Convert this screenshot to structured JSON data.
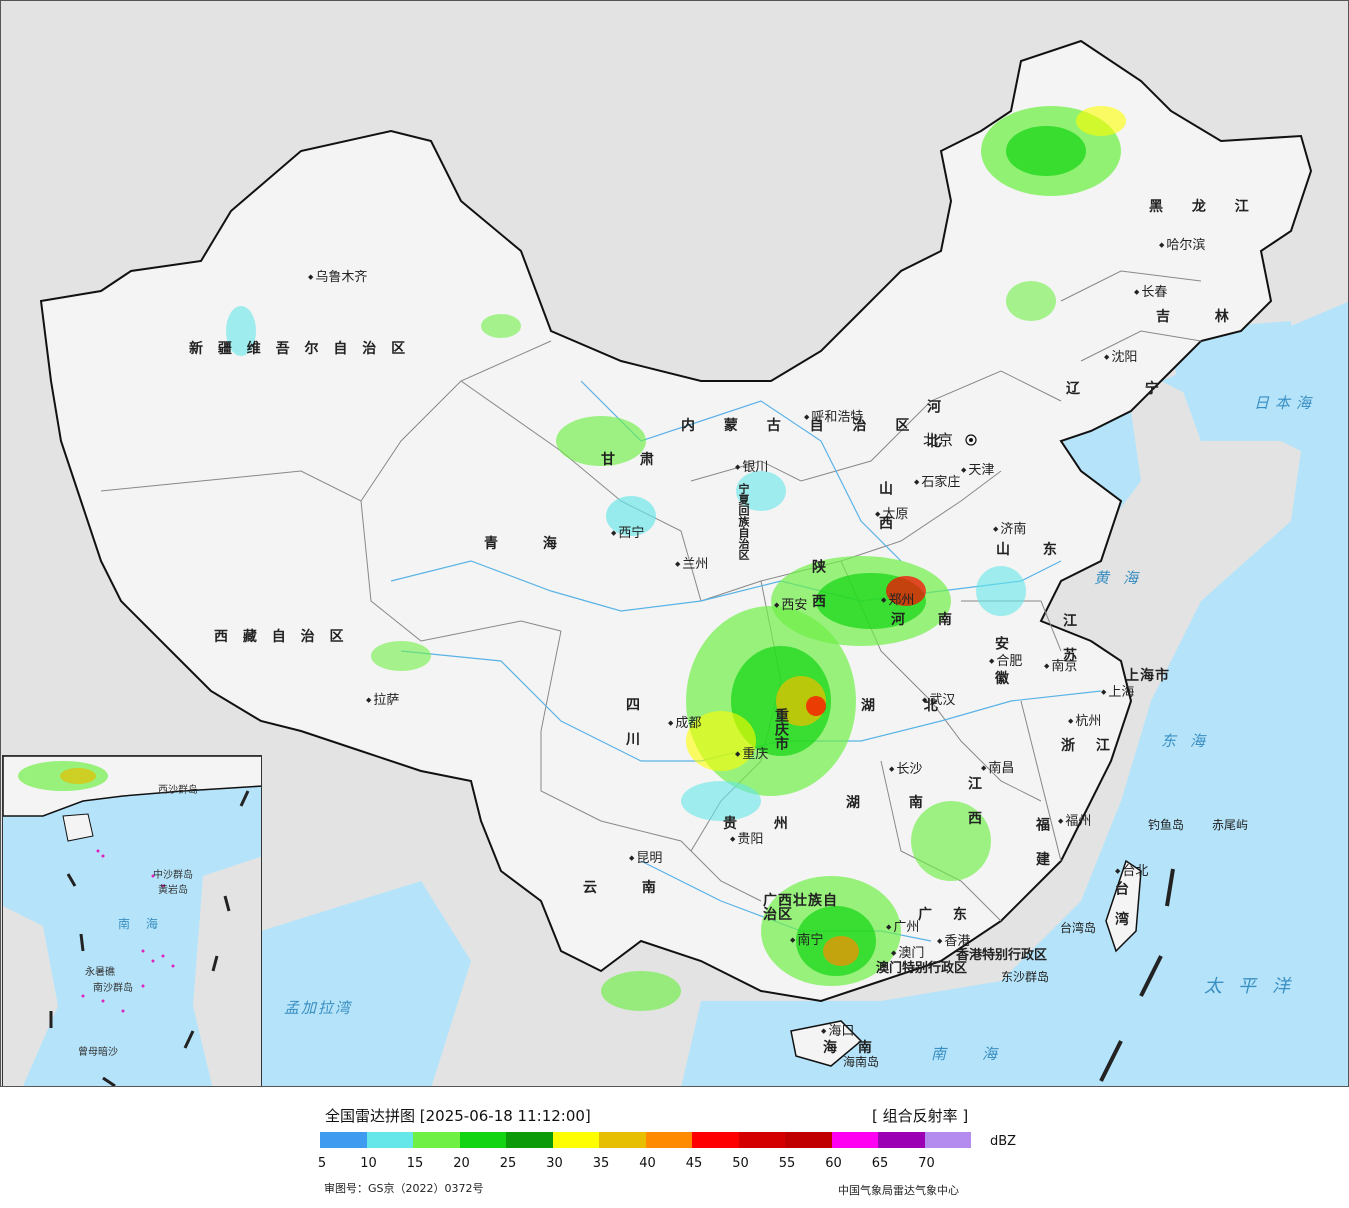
{
  "map": {
    "provinces": [
      {
        "name": "新 疆 维 吾 尔 自 治 区"
      },
      {
        "name": "西 藏 自 治 区"
      },
      {
        "name": "青  海"
      },
      {
        "name": "甘  肃"
      },
      {
        "name": "内  蒙  古  自  治  区"
      },
      {
        "name": "黑 龙 江"
      },
      {
        "name": "吉 林"
      },
      {
        "name": "辽 宁"
      },
      {
        "name": "河 北"
      },
      {
        "name": "山 西"
      },
      {
        "name": "山 东"
      },
      {
        "name": "河 南"
      },
      {
        "name": "陕 西"
      },
      {
        "name": "四 川"
      },
      {
        "name": "云 南"
      },
      {
        "name": "贵 州"
      },
      {
        "name": "湖 北"
      },
      {
        "name": "湖 南"
      },
      {
        "name": "江 西"
      },
      {
        "name": "安 徽"
      },
      {
        "name": "江 苏"
      },
      {
        "name": "浙 江"
      },
      {
        "name": "福 建"
      },
      {
        "name": "广 东"
      },
      {
        "name": "广西壮族自治区"
      },
      {
        "name": "海 南"
      },
      {
        "name": "台 湾"
      },
      {
        "name": "宁夏回族自治区"
      },
      {
        "name": "重庆市"
      },
      {
        "name": "上海市"
      },
      {
        "name": "香港特别行政区"
      },
      {
        "name": "澳门特别行政区"
      }
    ],
    "cities": [
      "乌鲁木齐",
      "拉萨",
      "西宁",
      "兰州",
      "银川",
      "呼和浩特",
      "北京",
      "天津",
      "石家庄",
      "太原",
      "济南",
      "郑州",
      "西安",
      "成都",
      "重庆",
      "贵阳",
      "昆明",
      "南宁",
      "广州",
      "香港",
      "澳门",
      "海口",
      "长沙",
      "武汉",
      "南昌",
      "合肥",
      "南京",
      "上海",
      "杭州",
      "福州",
      "台北",
      "哈尔滨",
      "长春",
      "沈阳"
    ],
    "seas": [
      "日本海",
      "黄海",
      "东海",
      "太平洋",
      "南海",
      "孟加拉湾"
    ],
    "islands": [
      "钓鱼岛",
      "赤尾屿",
      "台湾岛",
      "东沙群岛",
      "海南岛"
    ],
    "inset_labels": [
      "西沙群岛",
      "中沙群岛",
      "南沙群岛",
      "黄岩岛",
      "永暑礁",
      "曾母暗沙",
      "南 海"
    ]
  },
  "legend": {
    "title": "全国雷达拼图 [2025-06-18 11:12:00]",
    "product": "[ 组合反射率 ]",
    "unit": "dBZ",
    "levels": [
      {
        "value": "5",
        "color": "#3f9bf0"
      },
      {
        "value": "10",
        "color": "#65e6e9"
      },
      {
        "value": "15",
        "color": "#6ff047"
      },
      {
        "value": "20",
        "color": "#12d412"
      },
      {
        "value": "25",
        "color": "#0a9a0a"
      },
      {
        "value": "30",
        "color": "#fefe00"
      },
      {
        "value": "35",
        "color": "#e6c000"
      },
      {
        "value": "40",
        "color": "#ff8c00"
      },
      {
        "value": "45",
        "color": "#ff0000"
      },
      {
        "value": "50",
        "color": "#d40000"
      },
      {
        "value": "55",
        "color": "#c00000"
      },
      {
        "value": "60",
        "color": "#ff00f2"
      },
      {
        "value": "65",
        "color": "#9c00b4"
      },
      {
        "value": "70",
        "color": "#b48cf0"
      }
    ],
    "approval": "审图号：GS京（2022）0372号",
    "credit": "中国气象局雷达气象中心"
  }
}
